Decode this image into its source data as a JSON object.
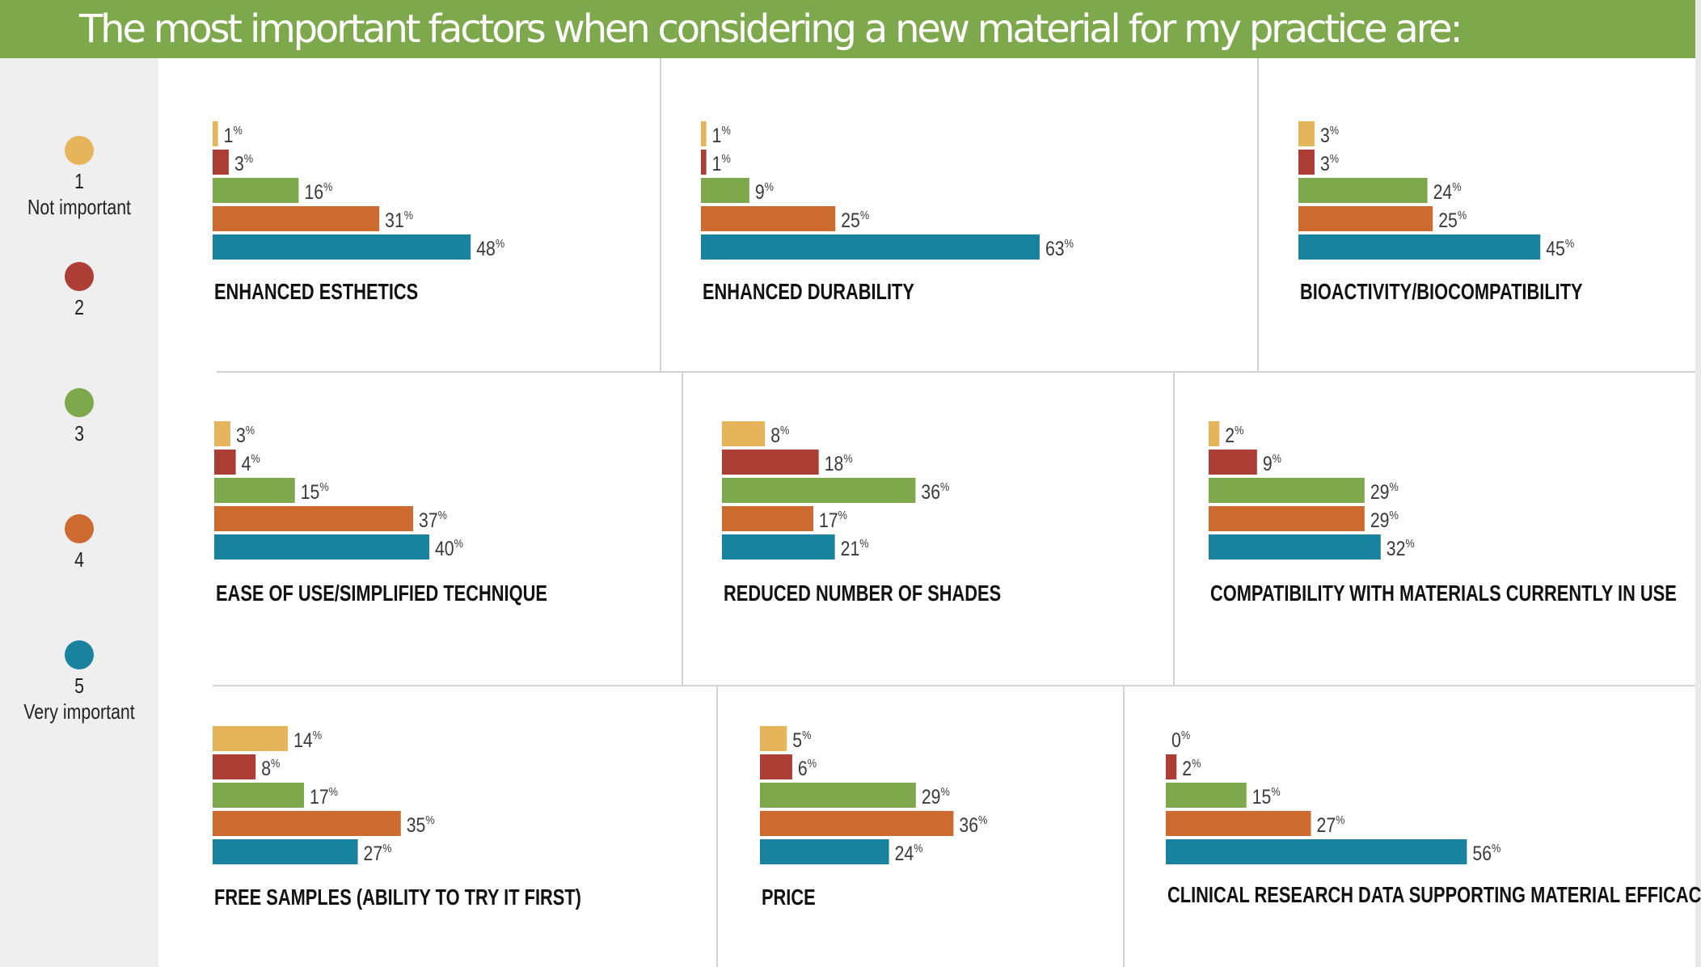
{
  "header": {
    "title": "The most important factors when considering a new material for my practice are:"
  },
  "legend": {
    "items": [
      {
        "value": "1",
        "desc": "Not important",
        "color": "#e5b45b"
      },
      {
        "value": "2",
        "desc": "",
        "color": "#ad3e36"
      },
      {
        "value": "3",
        "desc": "",
        "color": "#7ea84c"
      },
      {
        "value": "4",
        "desc": "",
        "color": "#cd6a30"
      },
      {
        "value": "5",
        "desc": "Very important",
        "color": "#18829f"
      }
    ]
  },
  "chart_data": {
    "type": "bar",
    "orientation": "horizontal",
    "unit": "%",
    "series_names": [
      "1",
      "2",
      "3",
      "4",
      "5"
    ],
    "series_colors": [
      "#e5b45b",
      "#ad3e36",
      "#7ea84c",
      "#cd6a30",
      "#18829f"
    ],
    "panels": [
      {
        "title": "ENHANCED ESTHETICS",
        "values": [
          1,
          3,
          16,
          31,
          48
        ]
      },
      {
        "title": "ENHANCED DURABILITY",
        "values": [
          1,
          1,
          9,
          25,
          63
        ]
      },
      {
        "title": "BIOACTIVITY/BIOCOMPATIBILITY",
        "values": [
          3,
          3,
          24,
          25,
          45
        ]
      },
      {
        "title": "EASE OF USE/SIMPLIFIED TECHNIQUE",
        "values": [
          3,
          4,
          15,
          37,
          40
        ]
      },
      {
        "title": "REDUCED NUMBER OF SHADES",
        "values": [
          8,
          18,
          36,
          17,
          21
        ]
      },
      {
        "title": "COMPATIBILITY WITH MATERIALS CURRENTLY IN USE",
        "values": [
          2,
          9,
          29,
          29,
          32
        ]
      },
      {
        "title": "FREE SAMPLES (ABILITY TO TRY IT FIRST)",
        "values": [
          14,
          8,
          17,
          35,
          27
        ]
      },
      {
        "title": "PRICE",
        "values": [
          5,
          6,
          29,
          36,
          24
        ]
      },
      {
        "title": "CLINICAL RESEARCH DATA SUPPORTING MATERIAL EFFICACY",
        "values": [
          0,
          2,
          15,
          27,
          56
        ]
      }
    ]
  }
}
